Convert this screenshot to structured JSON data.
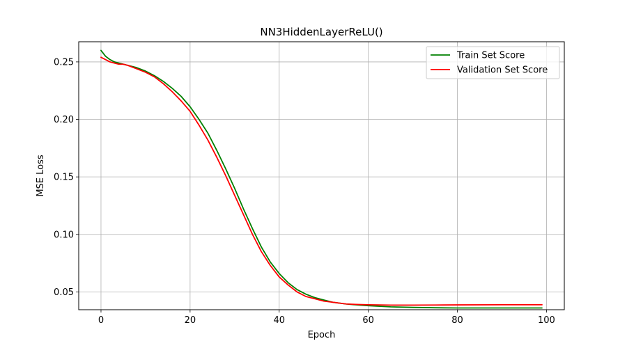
{
  "chart_data": {
    "type": "line",
    "title": "NN3HiddenLayerReLU()",
    "xlabel": "Epoch",
    "ylabel": "MSE Loss",
    "xlim": [
      -5,
      104
    ],
    "ylim": [
      0.0345,
      0.2675
    ],
    "xticks": [
      0,
      20,
      40,
      60,
      80,
      100
    ],
    "yticks": [
      0.05,
      0.1,
      0.15,
      0.2,
      0.25
    ],
    "xtick_labels": [
      "0",
      "20",
      "40",
      "60",
      "80",
      "100"
    ],
    "ytick_labels": [
      "0.05",
      "0.10",
      "0.15",
      "0.20",
      "0.25"
    ],
    "grid": true,
    "legend_position": "top-right",
    "series": [
      {
        "name": "Train Set Score",
        "color": "#008000",
        "x": [
          0,
          1,
          2,
          3,
          4,
          5,
          6,
          8,
          10,
          12,
          14,
          16,
          18,
          20,
          22,
          24,
          26,
          28,
          30,
          32,
          34,
          36,
          38,
          40,
          42,
          44,
          46,
          48,
          50,
          52,
          55,
          58,
          60,
          65,
          70,
          75,
          80,
          90,
          99
        ],
        "y": [
          0.26,
          0.255,
          0.252,
          0.25,
          0.249,
          0.248,
          0.247,
          0.245,
          0.242,
          0.238,
          0.233,
          0.227,
          0.22,
          0.211,
          0.2,
          0.188,
          0.173,
          0.157,
          0.14,
          0.122,
          0.105,
          0.089,
          0.076,
          0.066,
          0.058,
          0.052,
          0.048,
          0.045,
          0.043,
          0.041,
          0.0395,
          0.0385,
          0.038,
          0.037,
          0.0365,
          0.0362,
          0.036,
          0.036,
          0.036
        ]
      },
      {
        "name": "Validation Set Score",
        "color": "#ff0000",
        "x": [
          0,
          1,
          2,
          3,
          4,
          5,
          6,
          8,
          10,
          12,
          14,
          16,
          18,
          20,
          22,
          24,
          26,
          28,
          30,
          32,
          34,
          36,
          38,
          40,
          42,
          44,
          46,
          48,
          50,
          52,
          55,
          58,
          60,
          65,
          70,
          75,
          80,
          90,
          99
        ],
        "y": [
          0.254,
          0.252,
          0.25,
          0.249,
          0.248,
          0.248,
          0.247,
          0.244,
          0.241,
          0.237,
          0.231,
          0.224,
          0.216,
          0.207,
          0.195,
          0.182,
          0.167,
          0.151,
          0.134,
          0.117,
          0.1,
          0.085,
          0.073,
          0.063,
          0.056,
          0.05,
          0.046,
          0.044,
          0.042,
          0.041,
          0.0395,
          0.039,
          0.0388,
          0.0385,
          0.0385,
          0.0386,
          0.0387,
          0.0388,
          0.0388
        ]
      }
    ]
  }
}
